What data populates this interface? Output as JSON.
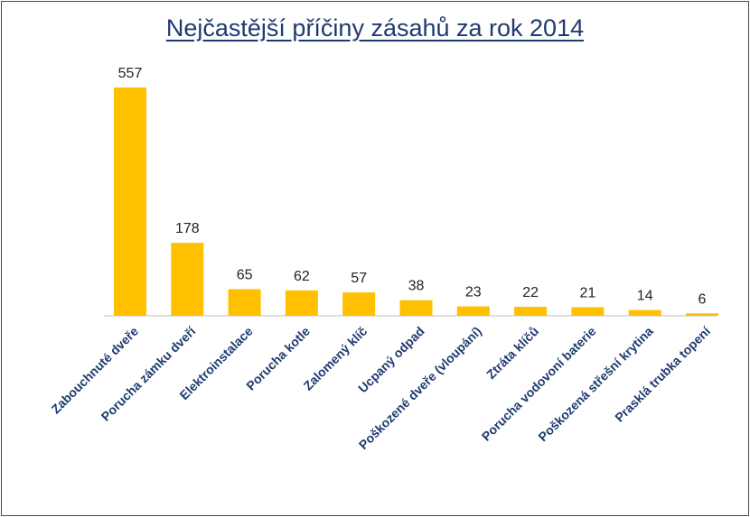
{
  "chart_data": {
    "type": "bar",
    "title": "Nejčastější příčiny zásahů za rok 2014",
    "xlabel": "",
    "ylabel": "",
    "ylim": [
      0,
      557
    ],
    "grid": false,
    "legend": "none",
    "categories": [
      "Zabouchnuté dveře",
      "Porucha zámku dveří",
      "Elektroinstalace",
      "Porucha kotle",
      "Zalomený klíč",
      "Ucpaný odpad",
      "Poškozené dveře (vloupání)",
      "Ztráta klíčů",
      "Porucha vodovoní baterie",
      "Poškozená střešní krytina",
      "Prasklá trubka topení"
    ],
    "values": [
      557,
      178,
      65,
      62,
      57,
      38,
      23,
      22,
      21,
      14,
      6
    ],
    "colors": {
      "bar": "#FFC000",
      "axis": "#bfbfbf"
    }
  }
}
